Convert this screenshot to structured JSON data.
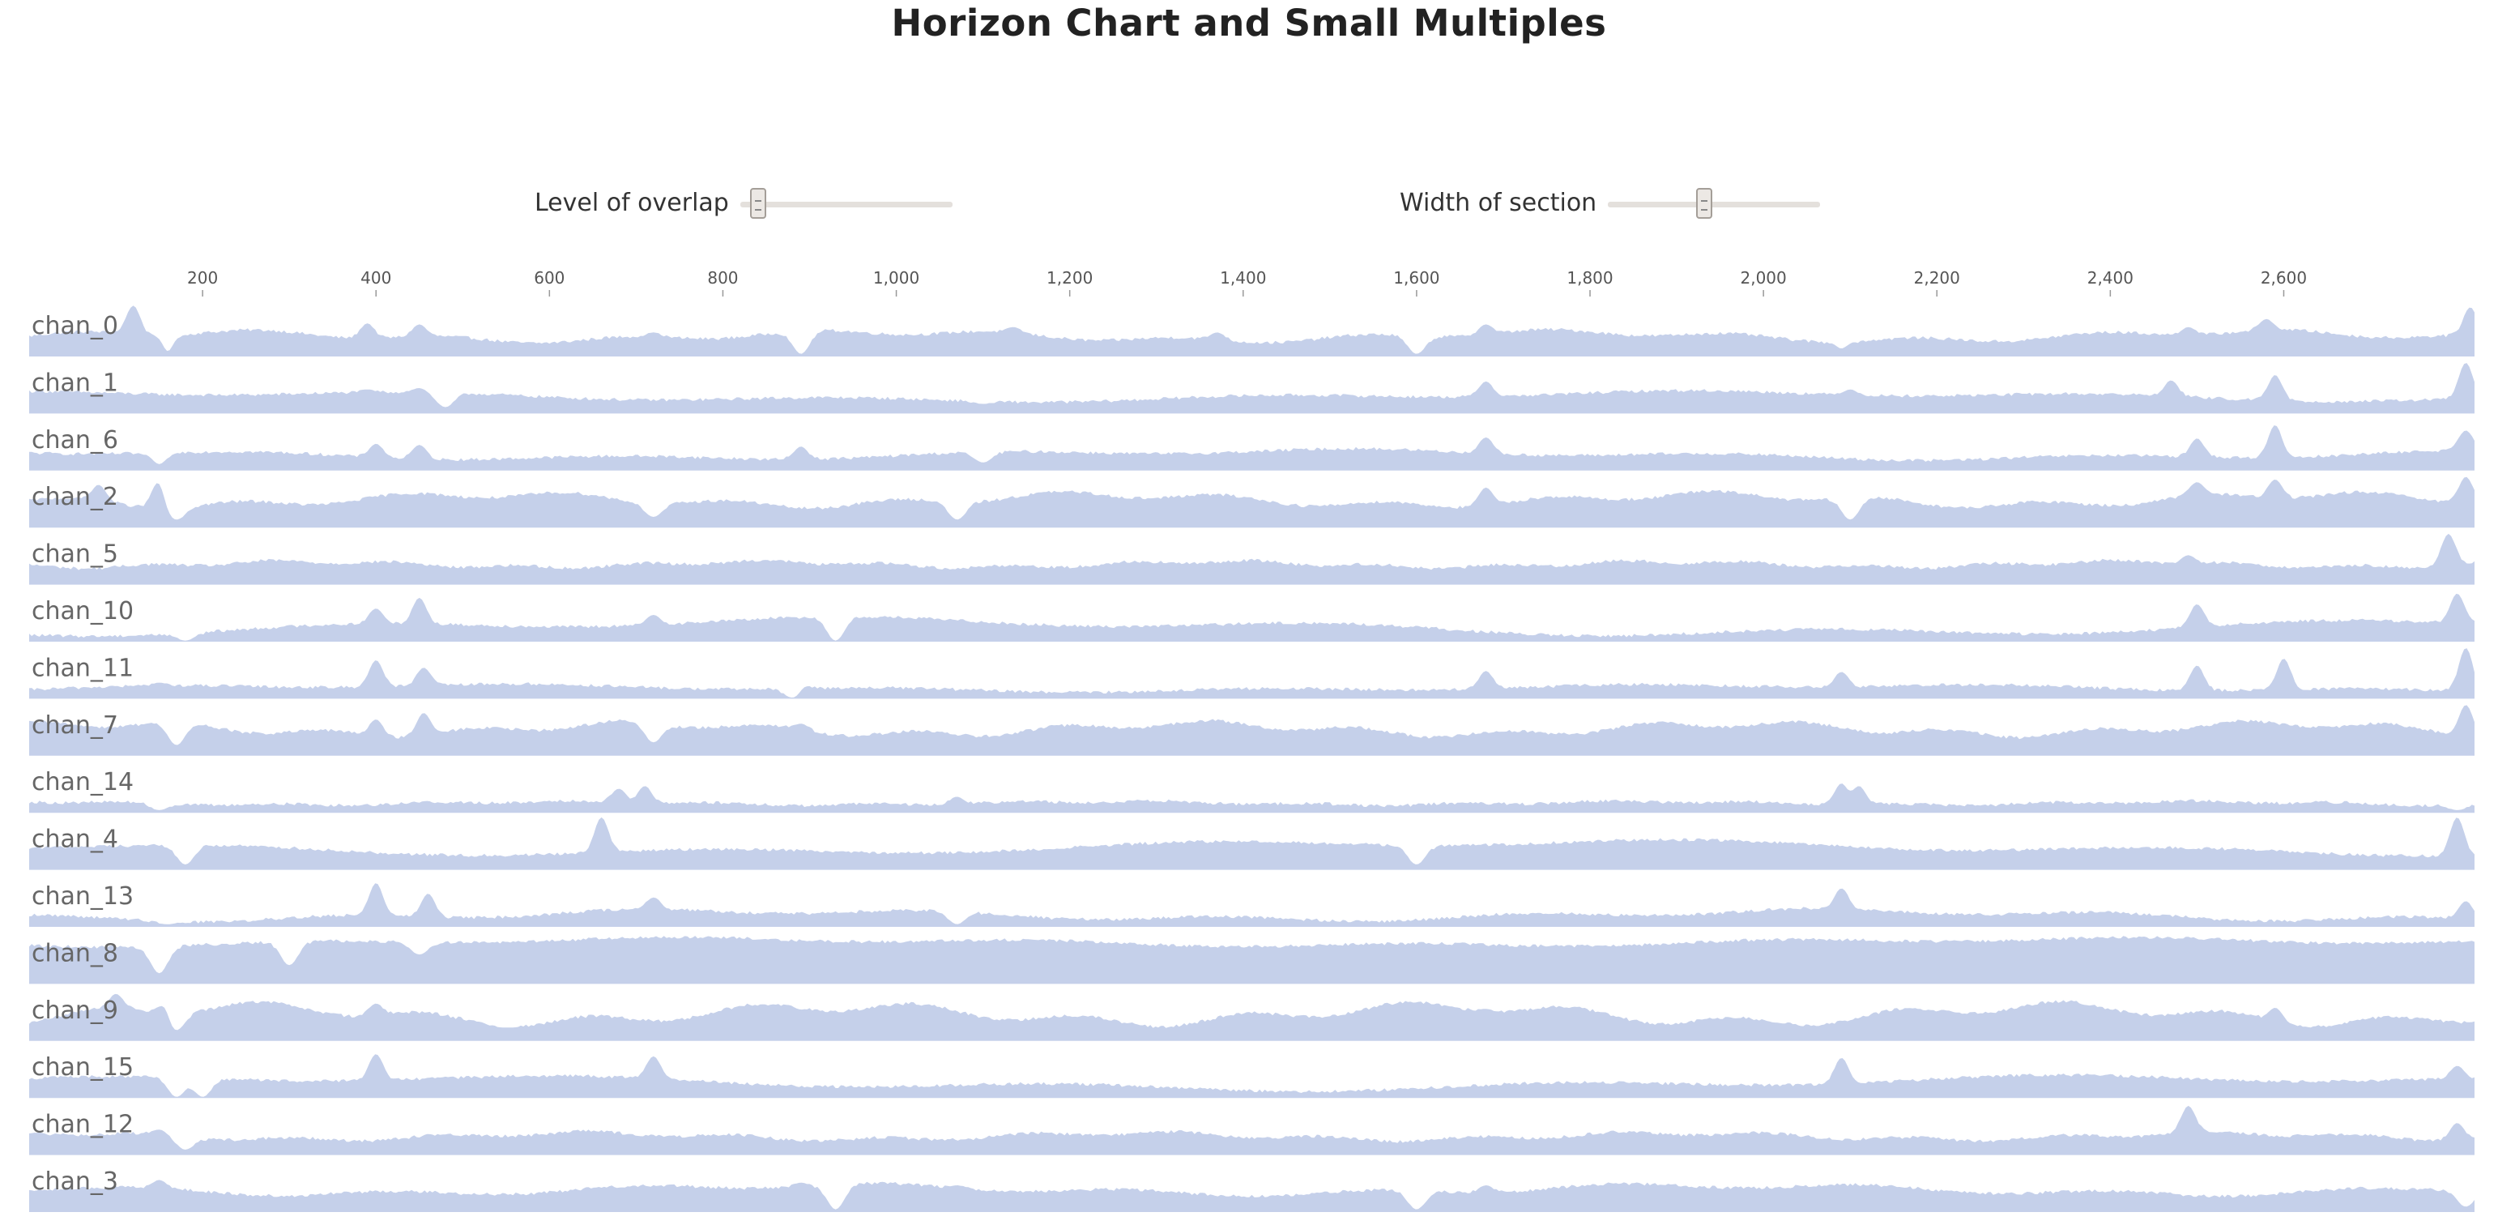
{
  "page": {
    "title": "Horizon Chart and Small Multiples"
  },
  "controls": {
    "overlap": {
      "label": "Level of overlap",
      "value": 0.05
    },
    "width": {
      "label": "Width of section",
      "value": 0.45
    }
  },
  "colors": {
    "area": "#c5d0ea",
    "axis": "#999999",
    "tick_text": "#555555",
    "row_label": "#666666"
  },
  "chart_data": {
    "type": "area",
    "chart_kind": "horizon-small-multiples",
    "x_range": [
      0,
      2820
    ],
    "x_ticks": [
      200,
      400,
      600,
      800,
      1000,
      1200,
      1400,
      1600,
      1800,
      2000,
      2200,
      2400,
      2600
    ],
    "x_tick_labels": [
      "200",
      "400",
      "600",
      "800",
      "1,000",
      "1,200",
      "1,400",
      "1,600",
      "1,800",
      "2,000",
      "2,200",
      "2,400",
      "2,600"
    ],
    "axis_position": "top",
    "grid": false,
    "y_range": [
      0,
      1
    ],
    "series": [
      {
        "name": "chan_0",
        "base": 0.38,
        "amp": 0.08,
        "freq": 0.08,
        "spikes": [
          [
            120,
            0.95
          ],
          [
            160,
            0.98
          ],
          [
            390,
            0.62
          ],
          [
            450,
            0.6
          ],
          [
            720,
            0.45
          ],
          [
            890,
            0.5
          ],
          [
            1135,
            0.55
          ],
          [
            1370,
            0.45
          ],
          [
            1680,
            0.6
          ],
          [
            2090,
            0.5
          ],
          [
            2490,
            0.55
          ],
          [
            2580,
            0.7
          ],
          [
            2815,
            0.92
          ]
        ],
        "dips": [
          [
            160,
            0.1
          ],
          [
            890,
            0.05
          ],
          [
            1600,
            0.05
          ],
          [
            2090,
            0.15
          ]
        ]
      },
      {
        "name": "chan_1",
        "base": 0.32,
        "amp": 0.07,
        "freq": 0.035,
        "spikes": [
          [
            390,
            0.45
          ],
          [
            450,
            0.48
          ],
          [
            1680,
            0.6
          ],
          [
            2100,
            0.45
          ],
          [
            2470,
            0.62
          ],
          [
            2590,
            0.72
          ],
          [
            2810,
            0.95
          ]
        ],
        "dips": [
          [
            480,
            0.12
          ],
          [
            1100,
            0.18
          ]
        ]
      },
      {
        "name": "chan_6",
        "base": 0.3,
        "amp": 0.07,
        "freq": 0.04,
        "spikes": [
          [
            150,
            0.5
          ],
          [
            400,
            0.5
          ],
          [
            450,
            0.48
          ],
          [
            890,
            0.45
          ],
          [
            1680,
            0.62
          ],
          [
            2500,
            0.6
          ],
          [
            2590,
            0.85
          ],
          [
            2810,
            0.75
          ]
        ],
        "dips": [
          [
            150,
            0.12
          ],
          [
            1100,
            0.15
          ]
        ]
      },
      {
        "name": "chan_2",
        "base": 0.52,
        "amp": 0.1,
        "freq": 0.09,
        "spikes": [
          [
            80,
            0.8
          ],
          [
            150,
            0.92
          ],
          [
            1680,
            0.75
          ],
          [
            2500,
            0.85
          ],
          [
            2590,
            0.9
          ],
          [
            2810,
            0.95
          ]
        ],
        "dips": [
          [
            170,
            0.15
          ],
          [
            720,
            0.2
          ],
          [
            1070,
            0.15
          ],
          [
            2100,
            0.15
          ]
        ]
      },
      {
        "name": "chan_5",
        "base": 0.38,
        "amp": 0.05,
        "freq": 0.12,
        "spikes": [
          [
            2490,
            0.55
          ],
          [
            2790,
            0.95
          ]
        ],
        "dips": []
      },
      {
        "name": "chan_10",
        "base": 0.28,
        "amp": 0.12,
        "freq": 0.03,
        "spikes": [
          [
            400,
            0.62
          ],
          [
            450,
            0.82
          ],
          [
            720,
            0.5
          ],
          [
            2500,
            0.7
          ],
          [
            2800,
            0.9
          ]
        ],
        "dips": [
          [
            180,
            0.02
          ],
          [
            930,
            0.02
          ]
        ]
      },
      {
        "name": "chan_11",
        "base": 0.2,
        "amp": 0.05,
        "freq": 0.04,
        "spikes": [
          [
            150,
            0.3
          ],
          [
            400,
            0.72
          ],
          [
            455,
            0.58
          ],
          [
            890,
            0.35
          ],
          [
            1680,
            0.52
          ],
          [
            2090,
            0.5
          ],
          [
            2500,
            0.62
          ],
          [
            2600,
            0.75
          ],
          [
            2810,
            0.95
          ]
        ],
        "dips": [
          [
            880,
            0.02
          ]
        ]
      },
      {
        "name": "chan_7",
        "base": 0.5,
        "amp": 0.1,
        "freq": 0.1,
        "spikes": [
          [
            150,
            0.62
          ],
          [
            400,
            0.68
          ],
          [
            455,
            0.8
          ],
          [
            890,
            0.6
          ],
          [
            2810,
            0.95
          ]
        ],
        "dips": [
          [
            170,
            0.2
          ],
          [
            720,
            0.25
          ]
        ]
      },
      {
        "name": "chan_14",
        "base": 0.18,
        "amp": 0.03,
        "freq": 0.1,
        "spikes": [
          [
            680,
            0.45
          ],
          [
            710,
            0.5
          ],
          [
            1070,
            0.3
          ],
          [
            2090,
            0.55
          ],
          [
            2110,
            0.5
          ]
        ],
        "dips": [
          [
            150,
            0.05
          ],
          [
            2800,
            0.05
          ]
        ]
      },
      {
        "name": "chan_4",
        "base": 0.42,
        "amp": 0.1,
        "freq": 0.03,
        "spikes": [
          [
            660,
            0.98
          ],
          [
            2800,
            0.98
          ]
        ],
        "dips": [
          [
            180,
            0.1
          ],
          [
            1600,
            0.1
          ]
        ]
      },
      {
        "name": "chan_13",
        "base": 0.22,
        "amp": 0.08,
        "freq": 0.05,
        "spikes": [
          [
            400,
            0.82
          ],
          [
            460,
            0.62
          ],
          [
            720,
            0.55
          ],
          [
            2090,
            0.72
          ],
          [
            2810,
            0.48
          ]
        ],
        "dips": [
          [
            160,
            0.05
          ],
          [
            1070,
            0.05
          ]
        ]
      },
      {
        "name": "chan_8",
        "base": 0.78,
        "amp": 0.06,
        "freq": 0.04,
        "spikes": [],
        "dips": [
          [
            150,
            0.2
          ],
          [
            300,
            0.35
          ],
          [
            450,
            0.55
          ]
        ]
      },
      {
        "name": "chan_9",
        "base": 0.5,
        "amp": 0.15,
        "freq": 0.09,
        "spikes": [
          [
            100,
            0.88
          ],
          [
            160,
            0.92
          ],
          [
            400,
            0.7
          ],
          [
            1680,
            0.6
          ],
          [
            2590,
            0.62
          ]
        ],
        "dips": [
          [
            170,
            0.2
          ],
          [
            550,
            0.25
          ]
        ]
      },
      {
        "name": "chan_15",
        "base": 0.28,
        "amp": 0.1,
        "freq": 0.03,
        "spikes": [
          [
            400,
            0.82
          ],
          [
            720,
            0.78
          ],
          [
            2090,
            0.75
          ],
          [
            2800,
            0.6
          ]
        ],
        "dips": [
          [
            170,
            0.02
          ],
          [
            200,
            0.02
          ]
        ]
      },
      {
        "name": "chan_12",
        "base": 0.35,
        "amp": 0.06,
        "freq": 0.1,
        "spikes": [
          [
            150,
            0.48
          ],
          [
            2490,
            0.92
          ],
          [
            2800,
            0.6
          ]
        ],
        "dips": [
          [
            180,
            0.1
          ]
        ]
      },
      {
        "name": "chan_3",
        "base": 0.42,
        "amp": 0.08,
        "freq": 0.06,
        "spikes": [
          [
            150,
            0.6
          ],
          [
            890,
            0.55
          ],
          [
            1070,
            0.5
          ],
          [
            1680,
            0.5
          ],
          [
            2090,
            0.48
          ]
        ],
        "dips": [
          [
            930,
            0.05
          ],
          [
            1600,
            0.05
          ],
          [
            2810,
            0.1
          ]
        ]
      }
    ]
  }
}
